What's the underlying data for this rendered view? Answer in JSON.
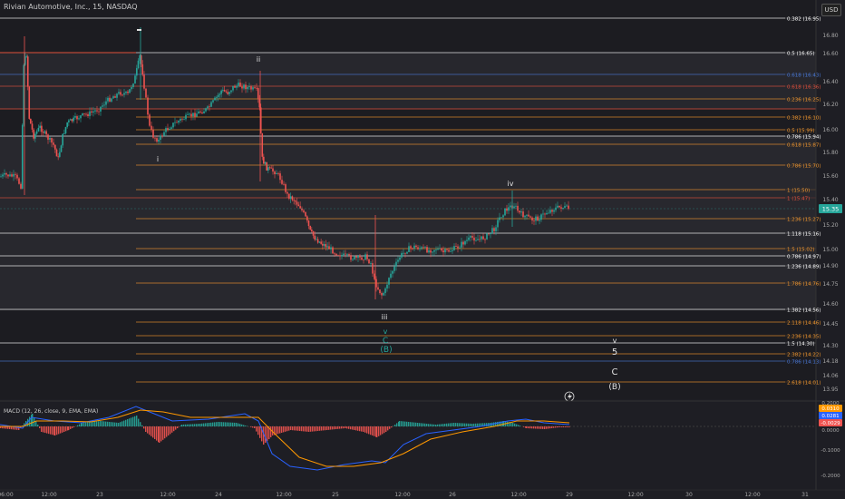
{
  "header": {
    "symbol_title": "Rivian Automotive, Inc., 15, NASDAQ",
    "currency": "USD"
  },
  "macd_label": "MACD (12, 26, close, 9, EMA, EMA)",
  "price_axis": {
    "ticks": [
      "16.80",
      "16.60",
      "16.40",
      "16.20",
      "16.00",
      "15.80",
      "15.60",
      "15.40",
      "15.20",
      "15.00",
      "14.90",
      "14.75",
      "14.60",
      "14.45",
      "14.30",
      "14.18",
      "14.06",
      "13.95"
    ],
    "current": "15.35"
  },
  "fib_labels": [
    {
      "text": "0.382 (16.95)",
      "color": "#ffffff"
    },
    {
      "text": "0.5 (16.65)",
      "color": "#ffffff"
    },
    {
      "text": "0.618 (16.43)",
      "color": "#4a78d6"
    },
    {
      "text": "0.618 (16.36)",
      "color": "#e0503c"
    },
    {
      "text": "0.236 (16.25)",
      "color": "#f0962e"
    },
    {
      "text": "0.382 (16.10)",
      "color": "#f0962e"
    },
    {
      "text": "0.5 (15.99)",
      "color": "#f0962e"
    },
    {
      "text": "0.786 (15.94)",
      "color": "#ffffff"
    },
    {
      "text": "0.618 (15.87)",
      "color": "#f0962e"
    },
    {
      "text": "0.786 (15.70)",
      "color": "#f0962e"
    },
    {
      "text": "1 (15.50)",
      "color": "#f0962e"
    },
    {
      "text": "1 (15.47)",
      "color": "#e0503c"
    },
    {
      "text": "1.236 (15.27)",
      "color": "#f0962e"
    },
    {
      "text": "1.118 (15.16)",
      "color": "#ffffff"
    },
    {
      "text": "1.5 (15.02)",
      "color": "#f0962e"
    },
    {
      "text": "0.786 (14.97)",
      "color": "#ffffff"
    },
    {
      "text": "1.236 (14.89)",
      "color": "#ffffff"
    },
    {
      "text": "1.786 (14.76)",
      "color": "#f0962e"
    },
    {
      "text": "1.382 (14.56)",
      "color": "#ffffff"
    },
    {
      "text": "2.118 (14.46)",
      "color": "#f0962e"
    },
    {
      "text": "2.236 (14.35)",
      "color": "#f0962e"
    },
    {
      "text": "1.5 (14.30)",
      "color": "#ffffff"
    },
    {
      "text": "2.382 (14.22)",
      "color": "#f0962e"
    },
    {
      "text": "0.786 (14.13)",
      "color": "#4a78d6"
    },
    {
      "text": "2.618 (14.01)",
      "color": "#f0962e"
    }
  ],
  "wave_labels": {
    "i": "i",
    "ii": "ii",
    "iii": "iii",
    "iv": "iv",
    "v_small": "v",
    "c_small": "C",
    "b_small": "(B)",
    "v_future": "v",
    "five": "5",
    "c_future": "C",
    "b_future": "(B)"
  },
  "macd_axis": {
    "ticks": [
      "0.2000",
      "0.1000",
      "0.0000",
      "-0.1000",
      "-0.2000"
    ],
    "values": [
      "0.0310",
      "0.0281",
      "-0.0029"
    ]
  },
  "time_axis": [
    "06:00",
    "12:00",
    "23",
    "12:00",
    "24",
    "12:00",
    "25",
    "12:00",
    "26",
    "12:00",
    "29",
    "12:00",
    "30",
    "12:00",
    "31"
  ],
  "colors": {
    "up": "#26a69a",
    "down": "#ef5350",
    "fib_orange": "#f0962e",
    "fib_white": "#ffffff",
    "fib_red": "#e0503c",
    "fib_blue": "#4a78d6",
    "macd_line": "#2962ff",
    "signal_line": "#ff9800"
  }
}
